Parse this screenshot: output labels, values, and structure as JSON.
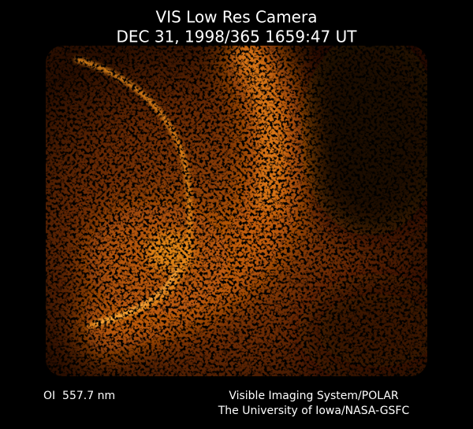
{
  "header": {
    "title": "VIS Low Res Camera",
    "subtitle": "DEC 31, 1998/365 1659:47 UT"
  },
  "footer": {
    "filter": "OI  557.7 nm",
    "credit": [
      "Visible Imaging System/POLAR",
      "The University of Iowa/NASA-GSFC"
    ]
  }
}
